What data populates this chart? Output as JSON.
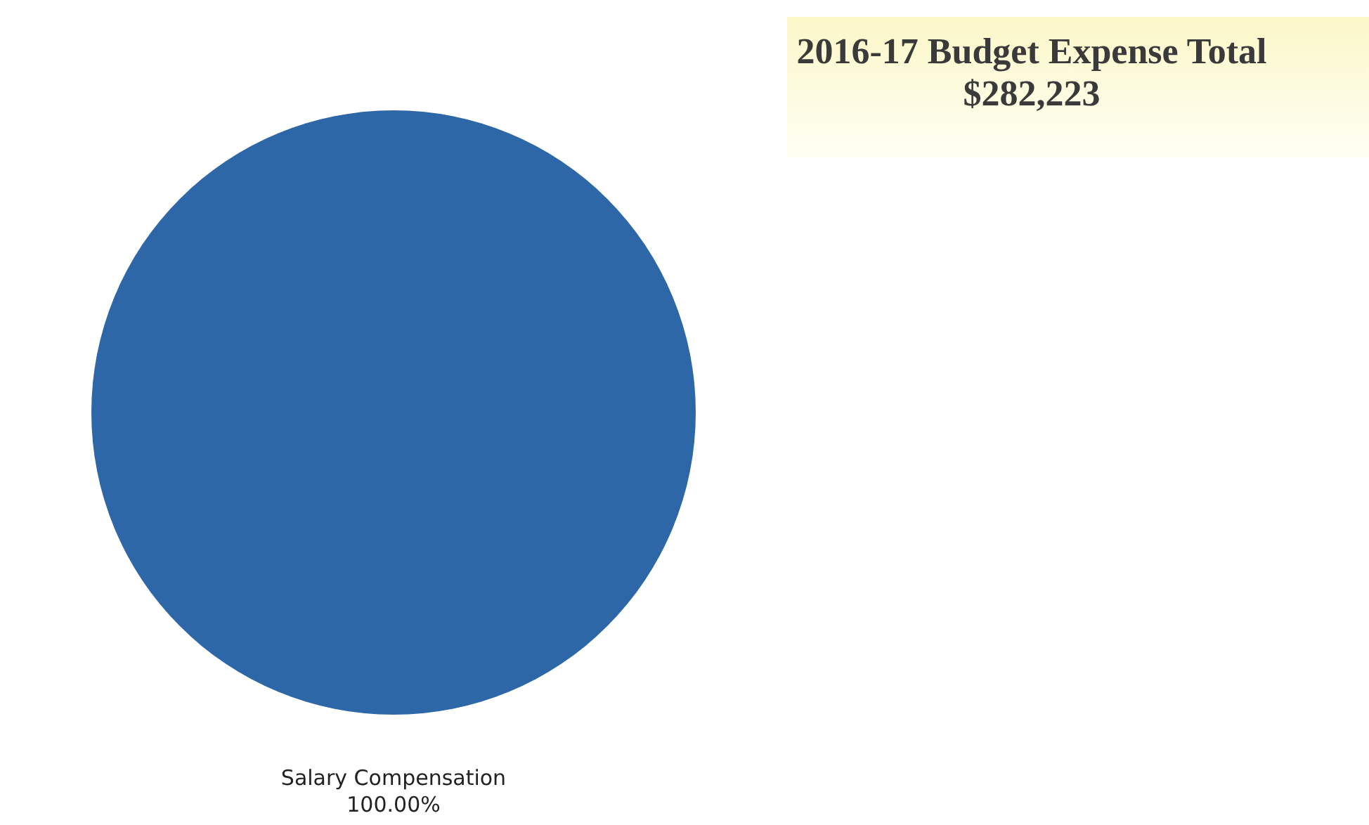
{
  "chart_data": {
    "type": "pie",
    "title": "2016-17 Budget Expense Total",
    "subtitle": "$282,223",
    "categories": [
      "Salary Compensation"
    ],
    "values": [
      100
    ],
    "colors": [
      "#2e67a8"
    ],
    "value_labels": [
      "100.00%"
    ]
  }
}
